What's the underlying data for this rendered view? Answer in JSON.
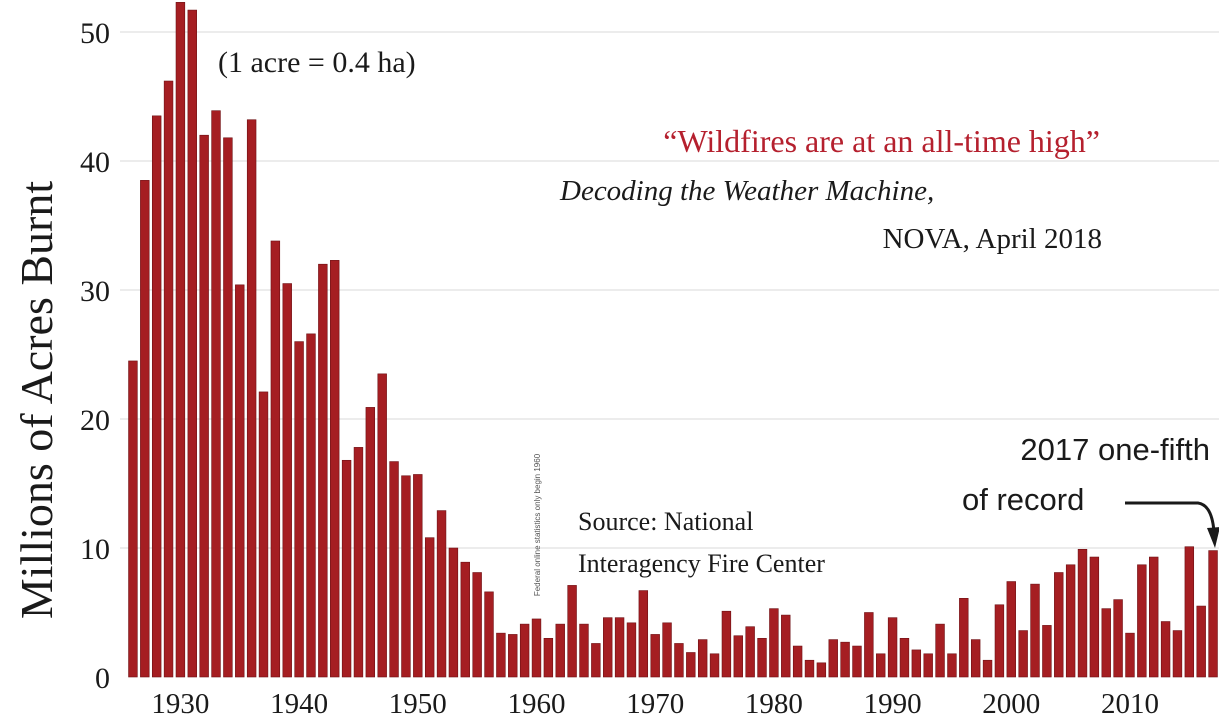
{
  "chart_data": {
    "type": "bar",
    "ylabel": "Millions of Acres Burnt",
    "xlim": [
      1926,
      2017
    ],
    "ylim": [
      0,
      52.5
    ],
    "x_ticks": [
      1930,
      1940,
      1950,
      1960,
      1970,
      1980,
      1990,
      2000,
      2010
    ],
    "y_ticks": [
      0,
      10,
      20,
      30,
      40,
      50
    ],
    "grid": "horizontal",
    "bar_color": "#a51e22",
    "years": [
      1926,
      1927,
      1928,
      1929,
      1930,
      1931,
      1932,
      1933,
      1934,
      1935,
      1936,
      1937,
      1938,
      1939,
      1940,
      1941,
      1942,
      1943,
      1944,
      1945,
      1946,
      1947,
      1948,
      1949,
      1950,
      1951,
      1952,
      1953,
      1954,
      1955,
      1956,
      1957,
      1958,
      1959,
      1960,
      1961,
      1962,
      1963,
      1964,
      1965,
      1966,
      1967,
      1968,
      1969,
      1970,
      1971,
      1972,
      1973,
      1974,
      1975,
      1976,
      1977,
      1978,
      1979,
      1980,
      1981,
      1982,
      1983,
      1984,
      1985,
      1986,
      1987,
      1988,
      1989,
      1990,
      1991,
      1992,
      1993,
      1994,
      1995,
      1996,
      1997,
      1998,
      1999,
      2000,
      2001,
      2002,
      2003,
      2004,
      2005,
      2006,
      2007,
      2008,
      2009,
      2010,
      2011,
      2012,
      2013,
      2014,
      2015,
      2016,
      2017
    ],
    "values": [
      24.5,
      38.5,
      43.5,
      46.2,
      52.3,
      51.7,
      42.0,
      43.9,
      41.8,
      30.4,
      43.2,
      22.1,
      33.8,
      30.5,
      26.0,
      26.6,
      32.0,
      32.3,
      16.8,
      17.8,
      20.9,
      23.5,
      16.7,
      15.6,
      15.7,
      10.8,
      12.9,
      10.0,
      8.9,
      8.1,
      6.6,
      3.4,
      3.3,
      4.1,
      4.5,
      3.0,
      4.1,
      7.1,
      4.1,
      2.6,
      4.6,
      4.6,
      4.2,
      6.7,
      3.3,
      4.2,
      2.6,
      1.9,
      2.9,
      1.8,
      5.1,
      3.2,
      3.9,
      3.0,
      5.3,
      4.8,
      2.4,
      1.3,
      1.1,
      2.9,
      2.7,
      2.4,
      5.0,
      1.8,
      4.6,
      3.0,
      2.1,
      1.8,
      4.1,
      1.8,
      6.1,
      2.9,
      1.3,
      5.6,
      7.4,
      3.6,
      7.2,
      4.0,
      8.1,
      8.7,
      9.9,
      9.3,
      5.3,
      6.0,
      3.4,
      8.7,
      9.3,
      4.3,
      3.6,
      10.1,
      5.5,
      9.8
    ],
    "annotations": {
      "conversion": "(1 acre = 0.4 ha)",
      "quote": "“Wildfires are at an all-time high”",
      "quote_source_title": "Decoding the Weather Machine,",
      "quote_source": "NOVA, April 2018",
      "data_source_line1": "Source: National",
      "data_source_line2": "Interagency Fire Center",
      "record_note_line1": "2017 one-fifth",
      "record_note_line2": "of record",
      "vertical_note": "Federal online statistics only begin 1960"
    }
  },
  "colors": {
    "bar": "#a51e22",
    "bar_edge": "#6e1014",
    "quote": "#b5202e",
    "grid": "#d9d9d9",
    "text": "#1a1a1a"
  }
}
